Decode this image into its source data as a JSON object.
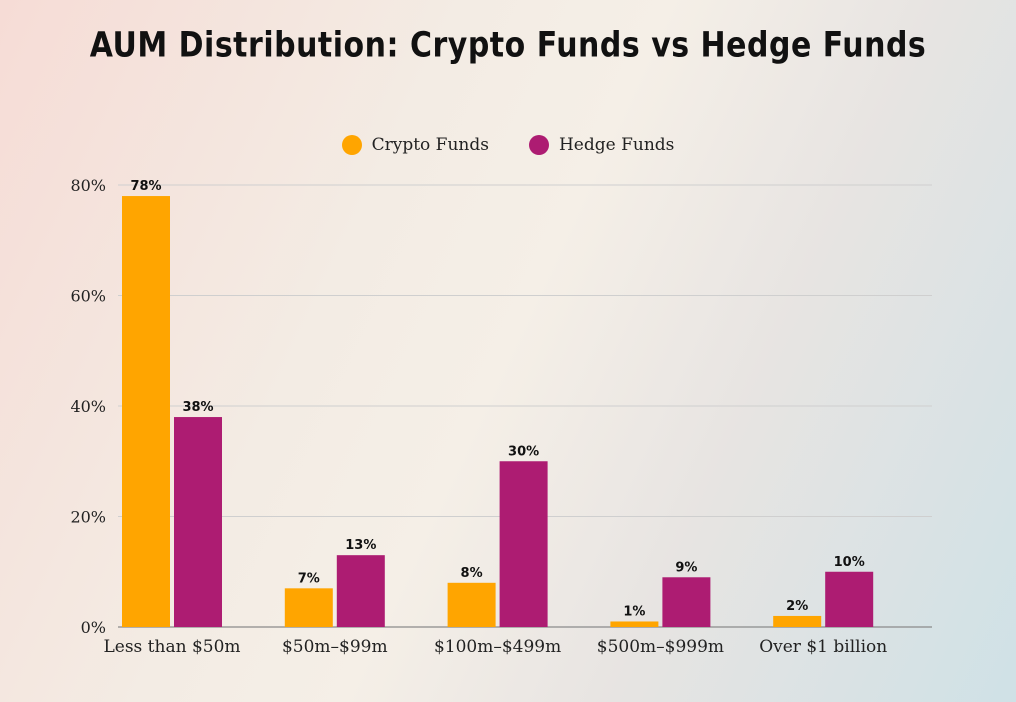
{
  "chart_data": {
    "type": "bar",
    "title": "AUM Distribution: Crypto Funds vs Hedge Funds",
    "categories": [
      "Less than $50m",
      "$50m–$99m",
      "$100m–$499m",
      "$500m–$999m",
      "Over $1 billion"
    ],
    "series": [
      {
        "name": "Crypto Funds",
        "color": "#FFA500",
        "values": [
          78,
          7,
          8,
          1,
          2
        ]
      },
      {
        "name": "Hedge Funds",
        "color": "#AD1C72",
        "values": [
          38,
          13,
          30,
          9,
          10
        ]
      }
    ],
    "data_labels": {
      "Crypto Funds": [
        "78%",
        "7%",
        "8%",
        "1%",
        "2%"
      ],
      "Hedge Funds": [
        "38%",
        "13%",
        "30%",
        "9%",
        "10%"
      ]
    },
    "y_ticks": [
      "0%",
      "20%",
      "40%",
      "60%",
      "80%"
    ],
    "ylim": [
      0,
      80
    ],
    "grid": true,
    "legend_position": "top-center"
  }
}
